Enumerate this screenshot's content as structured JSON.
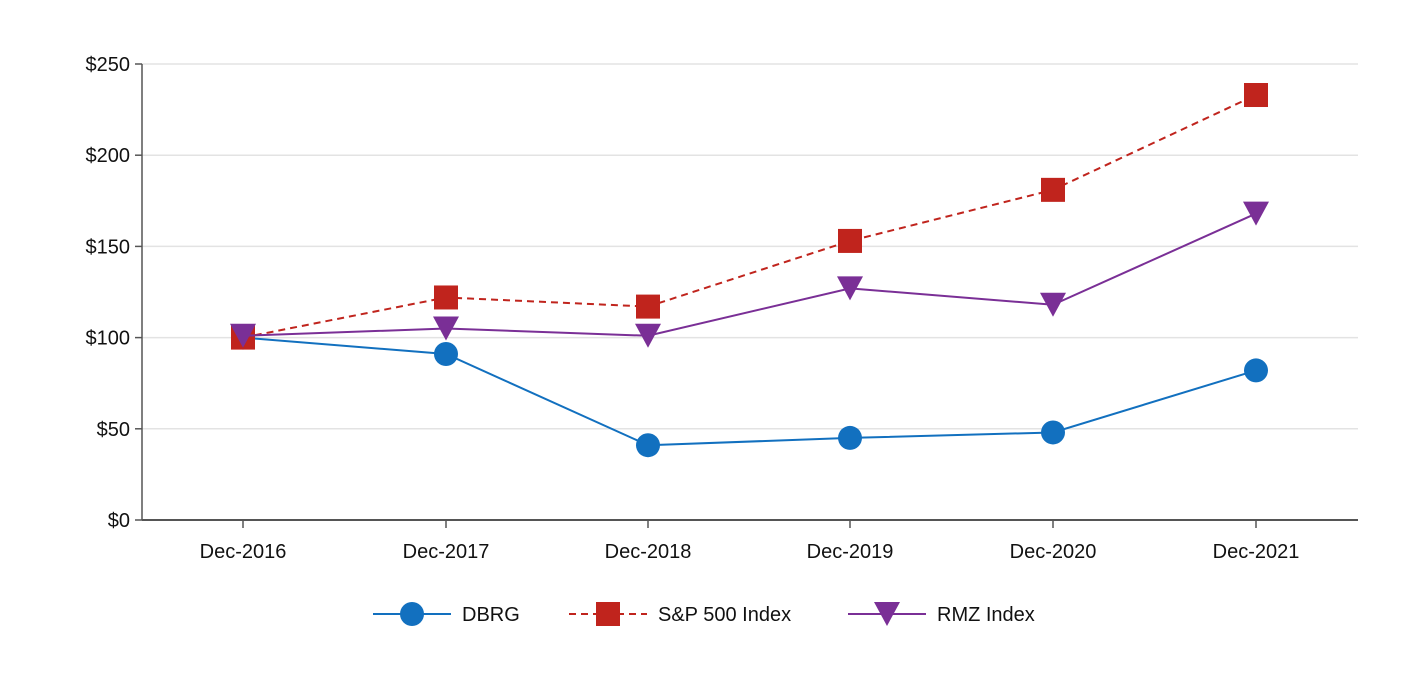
{
  "chart_data": {
    "type": "line",
    "title": "",
    "xlabel": "",
    "ylabel": "",
    "categories": [
      "Dec-2016",
      "Dec-2017",
      "Dec-2018",
      "Dec-2019",
      "Dec-2020",
      "Dec-2021"
    ],
    "ylim": [
      0,
      250
    ],
    "yticks": [
      0,
      50,
      100,
      150,
      200,
      250
    ],
    "ytick_labels": [
      "$0",
      "$50",
      "$100",
      "$150",
      "$200",
      "$250"
    ],
    "grid": true,
    "legend_position": "bottom-center",
    "series": [
      {
        "name": "DBRG",
        "values": [
          100,
          91,
          41,
          45,
          48,
          82
        ],
        "color": "#1270bf",
        "marker": "circle",
        "line_style": "solid"
      },
      {
        "name": "S&P 500 Index",
        "values": [
          100,
          122,
          117,
          153,
          181,
          233
        ],
        "color": "#c0241d",
        "marker": "square",
        "line_style": "dashed"
      },
      {
        "name": "RMZ Index",
        "values": [
          101,
          105,
          101,
          127,
          118,
          168
        ],
        "color": "#7a2f96",
        "marker": "triangle-down",
        "line_style": "solid"
      }
    ]
  }
}
